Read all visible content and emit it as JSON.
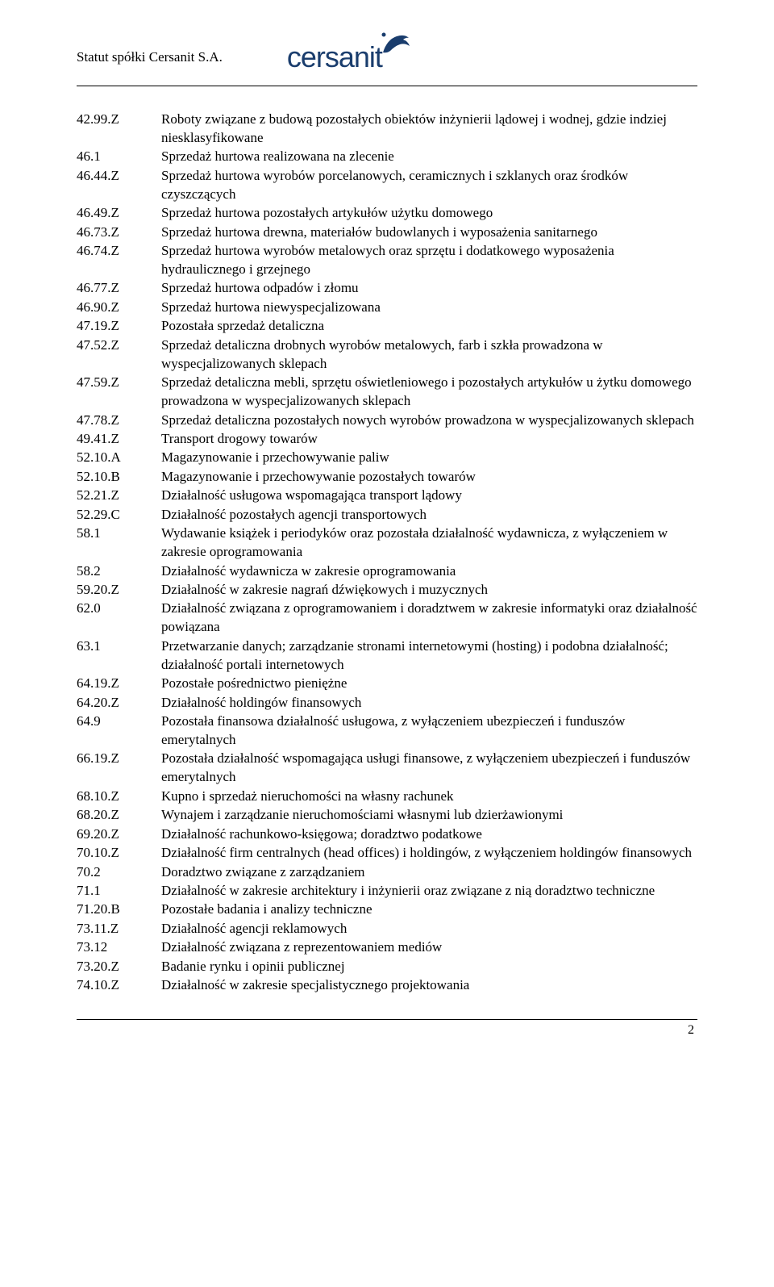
{
  "header": {
    "title": "Statut spółki Cersanit S.A.",
    "logo_text": "cersanit",
    "logo_color": "#1a3d6d",
    "dolphin_color": "#1a3d6d"
  },
  "page_number": "2",
  "items": [
    {
      "code": "42.99.Z",
      "desc": "Roboty związane z budową pozostałych obiektów inżynierii lądowej i wodnej, gdzie indziej niesklasyfikowane"
    },
    {
      "code": "46.1",
      "desc": "Sprzedaż hurtowa realizowana na zlecenie"
    },
    {
      "code": "46.44.Z",
      "desc": "Sprzedaż hurtowa wyrobów porcelanowych, ceramicznych i szklanych oraz środków czyszczących"
    },
    {
      "code": "46.49.Z",
      "desc": "Sprzedaż hurtowa pozostałych artykułów użytku domowego"
    },
    {
      "code": "46.73.Z",
      "desc": "Sprzedaż hurtowa drewna, materiałów budowlanych i wyposażenia sanitarnego"
    },
    {
      "code": "46.74.Z",
      "desc": "Sprzedaż hurtowa wyrobów metalowych oraz sprzętu i dodatkowego wyposażenia hydraulicznego i grzejnego"
    },
    {
      "code": "46.77.Z",
      "desc": "Sprzedaż hurtowa odpadów i złomu"
    },
    {
      "code": "46.90.Z",
      "desc": "Sprzedaż hurtowa niewyspecjalizowana"
    },
    {
      "code": "47.19.Z",
      "desc": "Pozostała sprzedaż detaliczna"
    },
    {
      "code": "47.52.Z",
      "desc": "Sprzedaż detaliczna drobnych wyrobów metalowych, farb i szkła prowadzona w wyspecjalizowanych sklepach"
    },
    {
      "code": "47.59.Z",
      "desc": "Sprzedaż detaliczna mebli, sprzętu oświetleniowego i pozostałych artykułów u żytku domowego prowadzona w wyspecjalizowanych sklepach"
    },
    {
      "code": "47.78.Z",
      "desc": "Sprzedaż detaliczna pozostałych nowych wyrobów prowadzona w wyspecjalizowanych sklepach"
    },
    {
      "code": "49.41.Z",
      "desc": "Transport drogowy towarów"
    },
    {
      "code": "52.10.A",
      "desc": "Magazynowanie i przechowywanie paliw"
    },
    {
      "code": "52.10.B",
      "desc": "Magazynowanie i przechowywanie pozostałych towarów"
    },
    {
      "code": "52.21.Z",
      "desc": "Działalność usługowa wspomagająca transport lądowy"
    },
    {
      "code": "52.29.C",
      "desc": "Działalność pozostałych agencji transportowych"
    },
    {
      "code": "58.1",
      "desc": "Wydawanie książek i periodyków oraz pozostała działalność wydawnicza, z wyłączeniem w zakresie oprogramowania"
    },
    {
      "code": "58.2",
      "desc": "Działalność wydawnicza w zakresie oprogramowania"
    },
    {
      "code": "59.20.Z",
      "desc": "Działalność w zakresie nagrań dźwiękowych i muzycznych"
    },
    {
      "code": "62.0",
      "desc": "Działalność związana z oprogramowaniem i doradztwem w zakresie informatyki oraz działalność powiązana"
    },
    {
      "code": "63.1",
      "desc": "Przetwarzanie danych; zarządzanie stronami internetowymi (hosting) i podobna działalność; działalność portali internetowych"
    },
    {
      "code": "64.19.Z",
      "desc": "Pozostałe pośrednictwo pieniężne"
    },
    {
      "code": "64.20.Z",
      "desc": "Działalność holdingów finansowych"
    },
    {
      "code": "64.9",
      "desc": "Pozostała finansowa działalność usługowa, z wyłączeniem ubezpieczeń i funduszów emerytalnych"
    },
    {
      "code": "66.19.Z",
      "desc": "Pozostała działalność wspomagająca usługi finansowe, z wyłączeniem ubezpieczeń i funduszów emerytalnych"
    },
    {
      "code": "68.10.Z",
      "desc": "Kupno i sprzedaż nieruchomości na własny rachunek"
    },
    {
      "code": "68.20.Z",
      "desc": "Wynajem i zarządzanie nieruchomościami własnymi lub dzierżawionymi"
    },
    {
      "code": "69.20.Z",
      "desc": "Działalność rachunkowo-księgowa; doradztwo podatkowe"
    },
    {
      "code": "70.10.Z",
      "desc": "Działalność firm centralnych (head offices) i holdingów, z wyłączeniem holdingów finansowych"
    },
    {
      "code": "70.2",
      "desc": "Doradztwo związane z zarządzaniem"
    },
    {
      "code": "71.1",
      "desc": "Działalność w zakresie architektury i inżynierii oraz związane z nią doradztwo techniczne"
    },
    {
      "code": "71.20.B",
      "desc": "Pozostałe badania i analizy techniczne"
    },
    {
      "code": "73.11.Z",
      "desc": "Działalność agencji reklamowych"
    },
    {
      "code": "73.12",
      "desc": "Działalność związana z reprezentowaniem mediów"
    },
    {
      "code": "73.20.Z",
      "desc": "Badanie rynku i opinii publicznej"
    },
    {
      "code": "74.10.Z",
      "desc": "Działalność w zakresie specjalistycznego projektowania"
    }
  ]
}
